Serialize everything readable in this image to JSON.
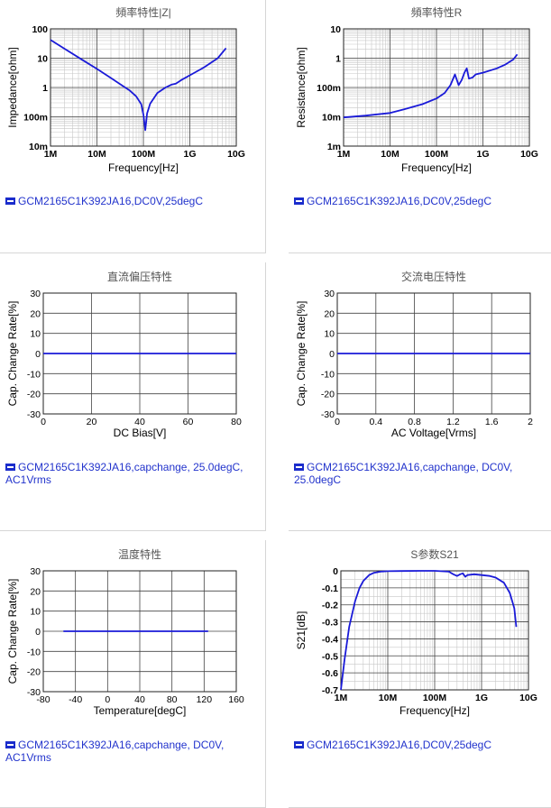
{
  "chart_data": [
    {
      "id": "c1",
      "type": "line",
      "title": "頻率特性|Z|",
      "xlabel": "Frequency[Hz]",
      "ylabel": "Impedance[ohm]",
      "x_scale": "log",
      "y_scale": "log",
      "xlim": [
        1000000,
        10000000000
      ],
      "ylim": [
        0.01,
        100
      ],
      "x_ticks": [
        {
          "v": 1000000,
          "label": "1M"
        },
        {
          "v": 10000000,
          "label": "10M"
        },
        {
          "v": 100000000,
          "label": "100M"
        },
        {
          "v": 1000000000,
          "label": "1G"
        },
        {
          "v": 10000000000,
          "label": "10G"
        }
      ],
      "y_ticks": [
        {
          "v": 0.01,
          "label": "10m"
        },
        {
          "v": 0.1,
          "label": "100m"
        },
        {
          "v": 1,
          "label": "1"
        },
        {
          "v": 10,
          "label": "10"
        },
        {
          "v": 100,
          "label": "100"
        }
      ],
      "series": [
        {
          "x": [
            1000000,
            2000000,
            5000000,
            10000000,
            20000000,
            50000000,
            70000000,
            90000000,
            100000000,
            110000000,
            120000000,
            140000000,
            200000000,
            300000000,
            400000000,
            500000000,
            700000000,
            1000000000,
            2000000000,
            4000000000,
            6000000000
          ],
          "y": [
            42,
            21,
            8.5,
            4.3,
            2.1,
            0.8,
            0.5,
            0.27,
            0.12,
            0.035,
            0.13,
            0.28,
            0.65,
            1.0,
            1.25,
            1.35,
            1.9,
            2.6,
            4.8,
            10,
            22
          ]
        }
      ],
      "legend": "GCM2165C1K392JA16,DC0V,25degC"
    },
    {
      "id": "c2",
      "type": "line",
      "title": "頻率特性R",
      "xlabel": "Frequency[Hz]",
      "ylabel": "Resistance[ohm]",
      "x_scale": "log",
      "y_scale": "log",
      "xlim": [
        1000000,
        10000000000
      ],
      "ylim": [
        0.001,
        10
      ],
      "x_ticks": [
        {
          "v": 1000000,
          "label": "1M"
        },
        {
          "v": 10000000,
          "label": "10M"
        },
        {
          "v": 100000000,
          "label": "100M"
        },
        {
          "v": 1000000000,
          "label": "1G"
        },
        {
          "v": 10000000000,
          "label": "10G"
        }
      ],
      "y_ticks": [
        {
          "v": 0.001,
          "label": "1m"
        },
        {
          "v": 0.01,
          "label": "10m"
        },
        {
          "v": 0.1,
          "label": "100m"
        },
        {
          "v": 1,
          "label": "1"
        },
        {
          "v": 10,
          "label": "10"
        }
      ],
      "series": [
        {
          "x": [
            1000000,
            3000000,
            10000000,
            20000000,
            50000000,
            100000000,
            150000000,
            200000000,
            250000000,
            300000000,
            350000000,
            400000000,
            450000000,
            500000000,
            600000000,
            700000000,
            1000000000,
            2000000000,
            3000000000,
            4500000000,
            5500000000
          ],
          "y": [
            0.0095,
            0.011,
            0.0135,
            0.018,
            0.027,
            0.042,
            0.065,
            0.12,
            0.28,
            0.12,
            0.18,
            0.32,
            0.45,
            0.2,
            0.22,
            0.28,
            0.32,
            0.45,
            0.6,
            0.9,
            1.35
          ]
        }
      ],
      "legend": "GCM2165C1K392JA16,DC0V,25degC"
    },
    {
      "id": "c3",
      "type": "line",
      "title": "直流偏压特性",
      "xlabel": "DC Bias[V]",
      "ylabel": "Cap. Change Rate[%]",
      "x_scale": "linear",
      "y_scale": "linear",
      "xlim": [
        0,
        80
      ],
      "ylim": [
        -30,
        30
      ],
      "x_ticks": [
        {
          "v": 0,
          "label": "0"
        },
        {
          "v": 20,
          "label": "20"
        },
        {
          "v": 40,
          "label": "40"
        },
        {
          "v": 60,
          "label": "60"
        },
        {
          "v": 80,
          "label": "80"
        }
      ],
      "y_ticks": [
        {
          "v": -30,
          "label": "-30"
        },
        {
          "v": -20,
          "label": "-20"
        },
        {
          "v": -10,
          "label": "-10"
        },
        {
          "v": 0,
          "label": "0"
        },
        {
          "v": 10,
          "label": "10"
        },
        {
          "v": 20,
          "label": "20"
        },
        {
          "v": 30,
          "label": "30"
        }
      ],
      "series": [
        {
          "x": [
            0,
            80
          ],
          "y": [
            0,
            0
          ]
        }
      ],
      "legend": "GCM2165C1K392JA16,capchange, 25.0degC, AC1Vrms"
    },
    {
      "id": "c4",
      "type": "line",
      "title": "交流电压特性",
      "xlabel": "AC Voltage[Vrms]",
      "ylabel": "Cap. Change Rate[%]",
      "x_scale": "linear",
      "y_scale": "linear",
      "xlim": [
        0,
        2
      ],
      "ylim": [
        -30,
        30
      ],
      "x_ticks": [
        {
          "v": 0,
          "label": "0"
        },
        {
          "v": 0.4,
          "label": "0.4"
        },
        {
          "v": 0.8,
          "label": "0.8"
        },
        {
          "v": 1.2,
          "label": "1.2"
        },
        {
          "v": 1.6,
          "label": "1.6"
        },
        {
          "v": 2,
          "label": "2"
        }
      ],
      "y_ticks": [
        {
          "v": -30,
          "label": "-30"
        },
        {
          "v": -20,
          "label": "-20"
        },
        {
          "v": -10,
          "label": "-10"
        },
        {
          "v": 0,
          "label": "0"
        },
        {
          "v": 10,
          "label": "10"
        },
        {
          "v": 20,
          "label": "20"
        },
        {
          "v": 30,
          "label": "30"
        }
      ],
      "series": [
        {
          "x": [
            0,
            2
          ],
          "y": [
            0,
            0
          ]
        }
      ],
      "legend": "GCM2165C1K392JA16,capchange, DC0V, 25.0degC"
    },
    {
      "id": "c5",
      "type": "line",
      "title": "温度特性",
      "xlabel": "Temperature[degC]",
      "ylabel": "Cap. Change Rate[%]",
      "x_scale": "linear",
      "y_scale": "linear",
      "xlim": [
        -80,
        160
      ],
      "ylim": [
        -30,
        30
      ],
      "x_ticks": [
        {
          "v": -80,
          "label": "-80"
        },
        {
          "v": -40,
          "label": "-40"
        },
        {
          "v": 0,
          "label": "0"
        },
        {
          "v": 40,
          "label": "40"
        },
        {
          "v": 80,
          "label": "80"
        },
        {
          "v": 120,
          "label": "120"
        },
        {
          "v": 160,
          "label": "160"
        }
      ],
      "y_ticks": [
        {
          "v": -30,
          "label": "-30"
        },
        {
          "v": -20,
          "label": "-20"
        },
        {
          "v": -10,
          "label": "-10"
        },
        {
          "v": 0,
          "label": "0"
        },
        {
          "v": 10,
          "label": "10"
        },
        {
          "v": 20,
          "label": "20"
        },
        {
          "v": 30,
          "label": "30"
        }
      ],
      "series": [
        {
          "x": [
            -55,
            125
          ],
          "y": [
            0,
            0
          ]
        }
      ],
      "legend": "GCM2165C1K392JA16,capchange, DC0V, AC1Vrms"
    },
    {
      "id": "c6",
      "type": "line",
      "title": "S参数S21",
      "xlabel": "Frequency[Hz]",
      "ylabel": "S21[dB]",
      "x_scale": "log",
      "y_scale": "linear",
      "xlim": [
        1000000,
        10000000000
      ],
      "ylim": [
        -0.7,
        0
      ],
      "x_ticks": [
        {
          "v": 1000000,
          "label": "1M"
        },
        {
          "v": 10000000,
          "label": "10M"
        },
        {
          "v": 100000000,
          "label": "100M"
        },
        {
          "v": 1000000000,
          "label": "1G"
        },
        {
          "v": 10000000000,
          "label": "10G"
        }
      ],
      "y_ticks": [
        {
          "v": -0.7,
          "label": "-0.7"
        },
        {
          "v": -0.6,
          "label": "-0.6"
        },
        {
          "v": -0.5,
          "label": "-0.5"
        },
        {
          "v": -0.4,
          "label": "-0.4"
        },
        {
          "v": -0.3,
          "label": "-0.3"
        },
        {
          "v": -0.2,
          "label": "-0.2"
        },
        {
          "v": -0.1,
          "label": "-0.1"
        },
        {
          "v": 0,
          "label": "0"
        }
      ],
      "series": [
        {
          "x": [
            1000000,
            1200000,
            1500000,
            2000000,
            2500000,
            3000000,
            4000000,
            5000000,
            7000000,
            10000000,
            20000000,
            50000000,
            100000000,
            200000000,
            250000000,
            300000000,
            350000000,
            400000000,
            450000000,
            500000000,
            700000000,
            1000000000,
            1500000000,
            2000000000,
            3000000000,
            4000000000,
            5000000000,
            5500000000
          ],
          "y": [
            -0.7,
            -0.52,
            -0.33,
            -0.18,
            -0.1,
            -0.06,
            -0.025,
            -0.012,
            -0.005,
            -0.002,
            -0.001,
            0,
            0,
            -0.005,
            -0.02,
            -0.03,
            -0.02,
            -0.015,
            -0.035,
            -0.025,
            -0.02,
            -0.025,
            -0.03,
            -0.04,
            -0.07,
            -0.13,
            -0.22,
            -0.33
          ]
        }
      ],
      "legend": "GCM2165C1K392JA16,DC0V,25degC"
    }
  ]
}
